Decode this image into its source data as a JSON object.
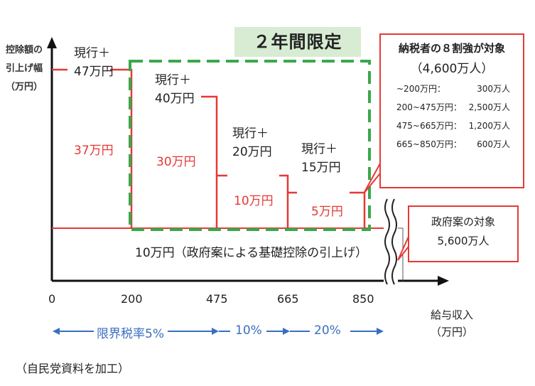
{
  "badge": "２年間限定",
  "y_axis_title": [
    "控除額の",
    "引上げ幅",
    "（万円）"
  ],
  "steps": [
    {
      "label_line1": "現行＋",
      "label_line2": "47万円",
      "value": "37万円"
    },
    {
      "label_line1": "現行＋",
      "label_line2": "40万円",
      "value": "30万円"
    },
    {
      "label_line1": "現行＋",
      "label_line2": "20万円",
      "value": "10万円"
    },
    {
      "label_line1": "現行＋",
      "label_line2": "15万円",
      "value": "5万円"
    }
  ],
  "base_text": "10万円（政府案による基礎控除の引上げ）",
  "x_ticks": [
    "0",
    "200",
    "475",
    "665",
    "850"
  ],
  "bands": [
    "限界税率5%",
    "10%",
    "20%"
  ],
  "x_axis_title": [
    "給与収入",
    "（万円）"
  ],
  "target_box": {
    "title": "納税者の８割強が対象",
    "total": "（4,600万人）",
    "rows": [
      {
        "range": "~200万円：",
        "count": "300万人"
      },
      {
        "range": "200~475万円：",
        "count": "2,500万人"
      },
      {
        "range": "475~665万円：",
        "count": "1,200万人"
      },
      {
        "range": "665~850万円：",
        "count": "600万人"
      }
    ]
  },
  "gov_box": {
    "line1": "政府案の対象",
    "line2": "5,600万人"
  },
  "source": "（自民党資料を加工）",
  "colors": {
    "red": "#e53935",
    "green": "#3aa84b",
    "blue": "#3a6fc0",
    "axis": "#111111"
  }
}
